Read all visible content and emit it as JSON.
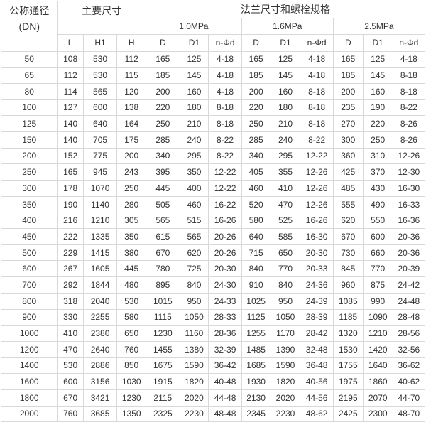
{
  "header": {
    "dn_label": "公称通径",
    "dn_unit": "(DN)",
    "main_dims": "主要尺寸",
    "flange": "法兰尺寸和螺栓规格",
    "pressures": [
      "1.0MPa",
      "1.6MPa",
      "2.5MPa"
    ],
    "main_cols": [
      "L",
      "H1",
      "H"
    ],
    "flange_cols": [
      "D",
      "D1",
      "n-Φd"
    ]
  },
  "rows": [
    [
      "50",
      "108",
      "530",
      "112",
      "165",
      "125",
      "4-18",
      "165",
      "125",
      "4-18",
      "165",
      "125",
      "4-18"
    ],
    [
      "65",
      "112",
      "530",
      "115",
      "185",
      "145",
      "4-18",
      "185",
      "145",
      "4-18",
      "185",
      "145",
      "8-18"
    ],
    [
      "80",
      "114",
      "565",
      "120",
      "200",
      "160",
      "4-18",
      "200",
      "160",
      "8-18",
      "200",
      "160",
      "8-18"
    ],
    [
      "100",
      "127",
      "600",
      "138",
      "220",
      "180",
      "8-18",
      "220",
      "180",
      "8-18",
      "235",
      "190",
      "8-22"
    ],
    [
      "125",
      "140",
      "640",
      "164",
      "250",
      "210",
      "8-18",
      "250",
      "210",
      "8-18",
      "270",
      "220",
      "8-26"
    ],
    [
      "150",
      "140",
      "705",
      "175",
      "285",
      "240",
      "8-22",
      "285",
      "240",
      "8-22",
      "300",
      "250",
      "8-26"
    ],
    [
      "200",
      "152",
      "775",
      "200",
      "340",
      "295",
      "8-22",
      "340",
      "295",
      "12-22",
      "360",
      "310",
      "12-26"
    ],
    [
      "250",
      "165",
      "945",
      "243",
      "395",
      "350",
      "12-22",
      "405",
      "355",
      "12-26",
      "425",
      "370",
      "12-30"
    ],
    [
      "300",
      "178",
      "1070",
      "250",
      "445",
      "400",
      "12-22",
      "460",
      "410",
      "12-26",
      "485",
      "430",
      "16-30"
    ],
    [
      "350",
      "190",
      "1140",
      "280",
      "505",
      "460",
      "16-22",
      "520",
      "470",
      "12-26",
      "555",
      "490",
      "16-33"
    ],
    [
      "400",
      "216",
      "1210",
      "305",
      "565",
      "515",
      "16-26",
      "580",
      "525",
      "16-26",
      "620",
      "550",
      "16-36"
    ],
    [
      "450",
      "222",
      "1335",
      "350",
      "615",
      "565",
      "20-26",
      "640",
      "585",
      "16-30",
      "670",
      "600",
      "20-36"
    ],
    [
      "500",
      "229",
      "1415",
      "380",
      "670",
      "620",
      "20-26",
      "715",
      "650",
      "20-30",
      "730",
      "660",
      "20-36"
    ],
    [
      "600",
      "267",
      "1605",
      "445",
      "780",
      "725",
      "20-30",
      "840",
      "770",
      "20-33",
      "845",
      "770",
      "20-39"
    ],
    [
      "700",
      "292",
      "1844",
      "480",
      "895",
      "840",
      "24-30",
      "910",
      "840",
      "24-36",
      "960",
      "875",
      "24-42"
    ],
    [
      "800",
      "318",
      "2040",
      "530",
      "1015",
      "950",
      "24-33",
      "1025",
      "950",
      "24-39",
      "1085",
      "990",
      "24-48"
    ],
    [
      "900",
      "330",
      "2255",
      "580",
      "1115",
      "1050",
      "28-33",
      "1125",
      "1050",
      "28-39",
      "1185",
      "1090",
      "28-48"
    ],
    [
      "1000",
      "410",
      "2380",
      "650",
      "1230",
      "1160",
      "28-36",
      "1255",
      "1170",
      "28-42",
      "1320",
      "1210",
      "28-56"
    ],
    [
      "1200",
      "470",
      "2640",
      "760",
      "1455",
      "1380",
      "32-39",
      "1485",
      "1390",
      "32-48",
      "1530",
      "1420",
      "32-56"
    ],
    [
      "1400",
      "530",
      "2886",
      "850",
      "1675",
      "1590",
      "36-42",
      "1685",
      "1590",
      "36-48",
      "1755",
      "1640",
      "36-62"
    ],
    [
      "1600",
      "600",
      "3156",
      "1030",
      "1915",
      "1820",
      "40-48",
      "1930",
      "1820",
      "40-56",
      "1975",
      "1860",
      "40-62"
    ],
    [
      "1800",
      "670",
      "3421",
      "1230",
      "2115",
      "2020",
      "44-48",
      "2130",
      "2020",
      "44-56",
      "2195",
      "2070",
      "44-70"
    ],
    [
      "2000",
      "760",
      "3685",
      "1350",
      "2325",
      "2230",
      "48-48",
      "2345",
      "2230",
      "48-62",
      "2425",
      "2300",
      "48-70"
    ]
  ]
}
